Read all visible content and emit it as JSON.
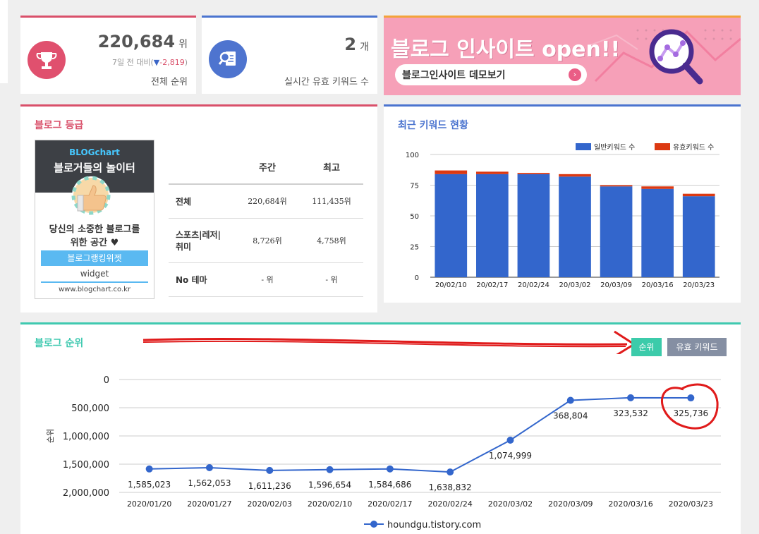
{
  "rank_card": {
    "rank_value": "220,684",
    "rank_unit": "위",
    "change_prefix": "7일 전 대비(",
    "change_arrow": "▼",
    "change_value": "-2,819",
    "change_suffix": ")",
    "label": "전체 순위"
  },
  "keyword_card": {
    "count_value": "2",
    "count_unit": "개",
    "label": "실시간 유효 키워드 수"
  },
  "banner": {
    "title": "블로그 인사이트 open!!",
    "button_label": "블로그인사이트 데모보기"
  },
  "grade": {
    "title": "블로그 등급",
    "widget": {
      "logo_text": "BLOGchart",
      "headline": "블로거들의 놀이터",
      "tagline_line1": "당신의 소중한 블로그를",
      "tagline_line2": "위한 공간 ♥",
      "ranking_widget_label": "블로그랭킹위젯",
      "widget_label": "widget",
      "url": "www.blogchart.co.kr"
    },
    "table": {
      "headers": [
        "",
        "주간",
        "최고"
      ],
      "rows": [
        {
          "label": "전체",
          "weekly": "220,684위",
          "best": "111,435위"
        },
        {
          "label_line1": "스포츠|레저|",
          "label_line2": "취미",
          "weekly": "8,726위",
          "best": "4,758위"
        },
        {
          "label": "No 테마",
          "weekly": "- 위",
          "best": "- 위"
        }
      ]
    }
  },
  "keyword_chart": {
    "title": "최근 키워드 현황",
    "chart_data": {
      "type": "bar",
      "stacked": true,
      "categories": [
        "20/02/10",
        "20/02/17",
        "20/02/24",
        "20/03/02",
        "20/03/09",
        "20/03/16",
        "20/03/23"
      ],
      "series": [
        {
          "name": "일반키워드 수",
          "color": "#3366cc",
          "values": [
            84,
            84,
            84,
            82,
            74,
            72,
            66
          ]
        },
        {
          "name": "유효키워드 수",
          "color": "#dc3912",
          "values": [
            3,
            2,
            1,
            2,
            1,
            2,
            2
          ]
        }
      ],
      "ylim": [
        0,
        100
      ],
      "yticks": [
        "100",
        "75",
        "50",
        "25",
        "0"
      ],
      "legend": "top-right",
      "grid": true
    }
  },
  "rank_chart": {
    "title": "블로그 순위",
    "buttons": {
      "rank": "순위",
      "keyword": "유효 키워드"
    },
    "chart_data": {
      "type": "line",
      "categories": [
        "2020/01/20",
        "2020/01/27",
        "2020/02/03",
        "2020/02/10",
        "2020/02/17",
        "2020/02/24",
        "2020/03/02",
        "2020/03/09",
        "2020/03/16",
        "2020/03/23"
      ],
      "series": [
        {
          "name": "houndgu.tistory.com",
          "color": "#3366cc",
          "values": [
            1585023,
            1562053,
            1611236,
            1596654,
            1584686,
            1638832,
            1074999,
            368804,
            323532,
            325736
          ],
          "labels": [
            "1,585,023",
            "1,562,053",
            "1,611,236",
            "1,596,654",
            "1,584,686",
            "1,638,832",
            "1,074,999",
            "368,804",
            "323,532",
            "325,736"
          ]
        }
      ],
      "ylabel": "순위",
      "yreversed": true,
      "ylim": [
        0,
        2000000
      ],
      "yticks": [
        "0",
        "500,000",
        "1,000,000",
        "1,500,000",
        "2,000,000"
      ],
      "legend": "bottom",
      "grid": true
    }
  }
}
